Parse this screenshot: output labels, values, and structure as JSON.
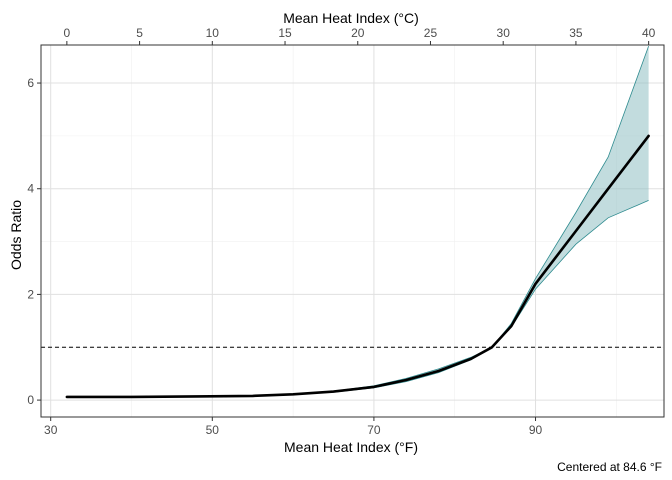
{
  "chart_data": {
    "type": "line",
    "title": "",
    "xlabel": "Mean Heat Index (°F)",
    "x2label": "Mean Heat Index (°C)",
    "ylabel": "Odds Ratio",
    "caption": "Centered at 84.6 °F",
    "xlim": [
      28.8,
      105.9
    ],
    "ylim": [
      -0.32,
      6.72
    ],
    "x_ticks": [
      30,
      50,
      70,
      90
    ],
    "x_tick_labels": [
      "30",
      "50",
      "70",
      "90"
    ],
    "x_minor_ticks": [
      40,
      60,
      80,
      100
    ],
    "x2_ticks_celsius": [
      0,
      5,
      10,
      15,
      20,
      25,
      30,
      35,
      40
    ],
    "x2_tick_labels": [
      "0",
      "5",
      "10",
      "15",
      "20",
      "25",
      "30",
      "35",
      "40"
    ],
    "y_ticks": [
      0,
      2,
      4,
      6
    ],
    "y_tick_labels": [
      "0",
      "2",
      "4",
      "6"
    ],
    "y_minor_ticks": [
      1,
      3,
      5
    ],
    "reference_line": {
      "y": 1,
      "style": "dashed"
    },
    "grid": true,
    "series": [
      {
        "x": [
          32,
          40,
          48,
          55,
          60,
          65,
          70,
          74,
          78,
          82,
          84.6,
          87,
          90,
          95,
          99,
          104
        ],
        "y": [
          0.06,
          0.06,
          0.07,
          0.08,
          0.11,
          0.16,
          0.25,
          0.38,
          0.55,
          0.78,
          1.0,
          1.4,
          2.2,
          3.2,
          4.0,
          5.0
        ],
        "lower": [
          0.06,
          0.06,
          0.07,
          0.08,
          0.11,
          0.15,
          0.23,
          0.35,
          0.52,
          0.76,
          1.0,
          1.38,
          2.1,
          2.95,
          3.45,
          3.78
        ],
        "upper": [
          0.06,
          0.06,
          0.07,
          0.08,
          0.11,
          0.17,
          0.27,
          0.41,
          0.59,
          0.81,
          1.0,
          1.45,
          2.3,
          3.55,
          4.6,
          6.7
        ]
      }
    ],
    "colors": {
      "line": "#000000",
      "ribbon_fill": "#8fc0c3",
      "ribbon_edge": "#2e8b8f",
      "grid_major": "#e0e0e0",
      "grid_minor": "#f0f0f0",
      "panel_border": "#333333",
      "reference_line": "#000000"
    }
  }
}
